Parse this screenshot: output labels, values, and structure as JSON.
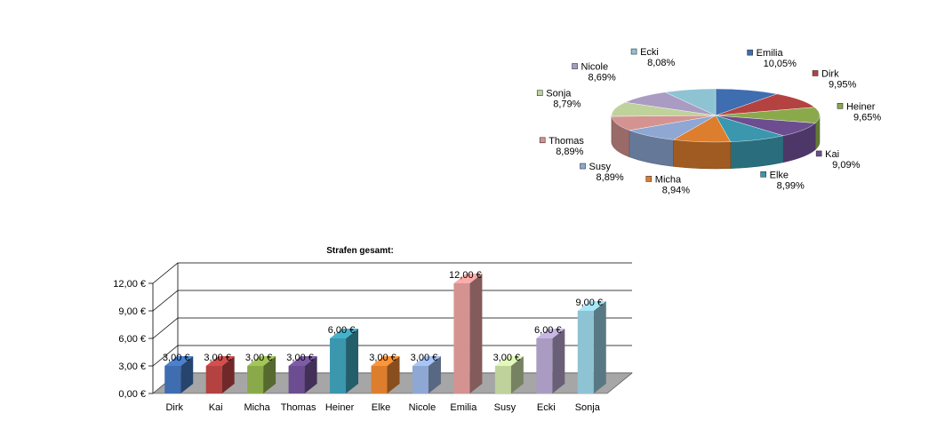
{
  "chart_data": [
    {
      "type": "pie",
      "title": "",
      "labels": [
        "Emilia",
        "Dirk",
        "Heiner",
        "Kai",
        "Elke",
        "Micha",
        "Susy",
        "Thomas",
        "Sonja",
        "Nicole",
        "Ecki"
      ],
      "values": [
        10.05,
        9.95,
        9.65,
        9.09,
        8.99,
        8.94,
        8.89,
        8.89,
        8.79,
        8.69,
        8.08
      ],
      "value_labels": [
        "10,05%",
        "9,95%",
        "9,65%",
        "9,09%",
        "8,99%",
        "8,94%",
        "8,89%",
        "8,89%",
        "8,79%",
        "8,69%",
        "8,08%"
      ],
      "colors": [
        "#3e6db0",
        "#b44240",
        "#8aa94a",
        "#6b4d90",
        "#3a97ad",
        "#dd7e2e",
        "#8ea7d3",
        "#d49391",
        "#bfd29c",
        "#a99bc1",
        "#8ec3d3"
      ],
      "legend": "none"
    },
    {
      "type": "bar",
      "title": "Strafen gesamt:",
      "categories": [
        "Dirk",
        "Kai",
        "Micha",
        "Thomas",
        "Heiner",
        "Elke",
        "Nicole",
        "Emilia",
        "Susy",
        "Ecki",
        "Sonja"
      ],
      "values": [
        3,
        3,
        3,
        3,
        6,
        3,
        3,
        12,
        3,
        6,
        9
      ],
      "value_labels": [
        "3,00 €",
        "3,00 €",
        "3,00 €",
        "3,00 €",
        "6,00 €",
        "3,00 €",
        "3,00 €",
        "12,00 €",
        "3,00 €",
        "6,00 €",
        "9,00 €"
      ],
      "yticks": [
        "0,00 €",
        "3,00 €",
        "6,00 €",
        "9,00 €",
        "12,00 €"
      ],
      "ylim": [
        0,
        12
      ],
      "colors": [
        "#3e6db0",
        "#b44240",
        "#8aa94a",
        "#6b4d90",
        "#3a97ad",
        "#dd7e2e",
        "#8ea7d3",
        "#d49391",
        "#bfd29c",
        "#a99bc1",
        "#8ec3d3"
      ],
      "grid": true,
      "legend": "none"
    }
  ]
}
